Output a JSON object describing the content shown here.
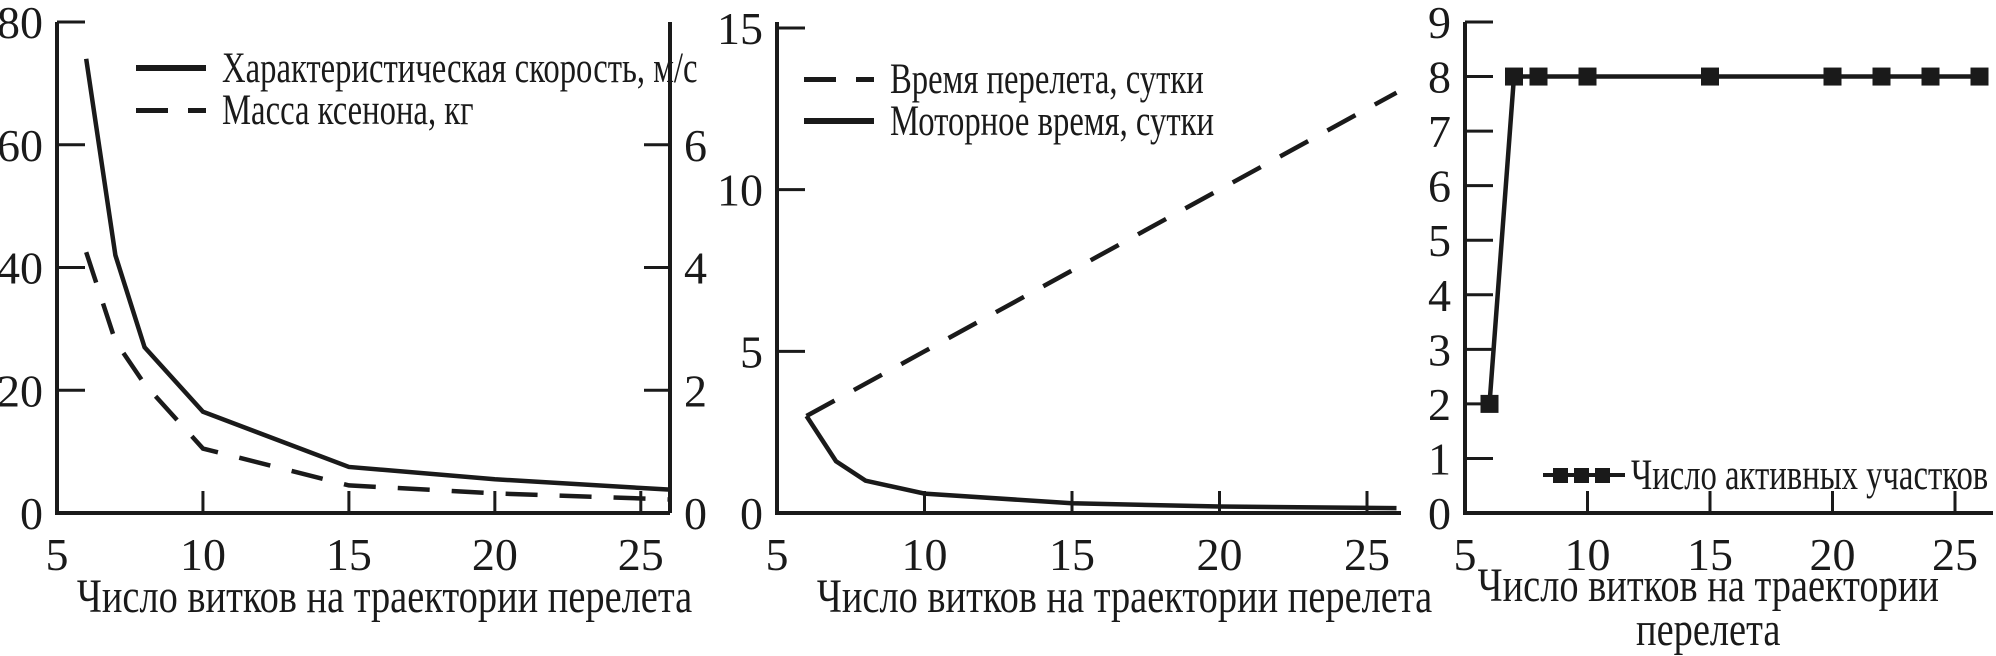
{
  "figure": {
    "ink_color": "#1a1a1a",
    "background": "#ffffff"
  },
  "chart_data": [
    {
      "type": "line",
      "xlabel": "Число витков на траектории перелета",
      "x_ticks": [
        5,
        10,
        15,
        20,
        25
      ],
      "x_range": [
        5,
        26
      ],
      "x": [
        6,
        7,
        8,
        10,
        15,
        20,
        26
      ],
      "left_axis": {
        "range": [
          0,
          80
        ],
        "ticks": [
          0,
          20,
          40,
          60,
          80
        ]
      },
      "right_axis": {
        "range": [
          0,
          8
        ],
        "ticks": [
          0,
          2,
          4,
          6
        ]
      },
      "grid": false,
      "legend_position": "top-left",
      "series": [
        {
          "name": "Характеристическая скорость, м/с",
          "axis": "left",
          "line_style": "solid",
          "values": [
            74,
            42,
            27,
            16.5,
            7.5,
            5.5,
            3.8
          ]
        },
        {
          "name": "Масса ксенона, кг",
          "axis": "right",
          "line_style": "dashed",
          "values": [
            4.25,
            2.8,
            2.1,
            1.05,
            0.45,
            0.32,
            0.22
          ]
        }
      ]
    },
    {
      "type": "line",
      "xlabel": "Число витков на траектории перелета",
      "x_ticks": [
        5,
        10,
        15,
        20,
        25
      ],
      "x_range": [
        5,
        26.2
      ],
      "x": [
        6,
        7,
        8,
        10,
        15,
        20,
        26
      ],
      "left_axis": {
        "range": [
          0,
          15
        ],
        "ticks": [
          0,
          5,
          10,
          15
        ]
      },
      "grid": false,
      "legend_position": "top-left",
      "series": [
        {
          "name": "Время перелета, сутки",
          "axis": "left",
          "line_style": "dashed",
          "values": [
            3,
            3.5,
            4,
            5,
            7.5,
            10,
            13
          ]
        },
        {
          "name": "Моторное время, сутки",
          "axis": "left",
          "line_style": "solid",
          "values": [
            3,
            1.6,
            1,
            0.6,
            0.3,
            0.2,
            0.15
          ]
        }
      ]
    },
    {
      "type": "line",
      "xlabel_lines": [
        "Число витков на траектории",
        "перелета"
      ],
      "x_ticks": [
        5,
        10,
        15,
        20,
        25
      ],
      "x_range": [
        5,
        26.6
      ],
      "x": [
        6,
        7,
        8,
        10,
        15,
        20,
        22,
        24,
        26
      ],
      "left_axis": {
        "range": [
          0,
          9
        ],
        "ticks": [
          0,
          1,
          2,
          3,
          4,
          5,
          6,
          7,
          8,
          9
        ]
      },
      "grid": false,
      "legend_position": "bottom-center",
      "series": [
        {
          "name": "Число активных участков",
          "axis": "left",
          "line_style": "solid",
          "marker": "square",
          "values": [
            2,
            8,
            8,
            8,
            8,
            8,
            8,
            8,
            8
          ]
        }
      ]
    }
  ]
}
